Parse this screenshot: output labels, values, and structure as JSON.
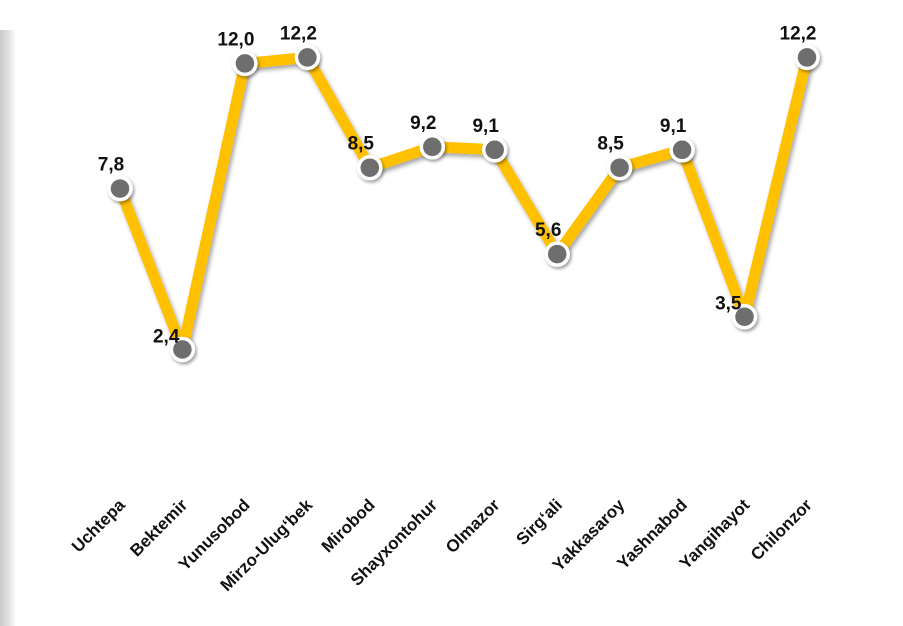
{
  "chart_data": {
    "type": "line",
    "title": "",
    "xlabel": "",
    "ylabel": "",
    "categories": [
      "Uchtepa",
      "Bektemir",
      "Yunusobod",
      "Mirzo-Ulug‘bek",
      "Mirobod",
      "Shayxontohur",
      "Olmazor",
      "Sirg‘ali",
      "Yakkasaroy",
      "Yashnabod",
      "Yangihayot",
      "Chilonzor"
    ],
    "series": [
      {
        "values": [
          7.8,
          2.4,
          12.0,
          12.2,
          8.5,
          9.2,
          9.1,
          5.6,
          8.5,
          9.1,
          3.5,
          12.2
        ],
        "labels": [
          "7,8",
          "2,4",
          "12,0",
          "12,2",
          "8,5",
          "9,2",
          "9,1",
          "5,6",
          "8,5",
          "9,1",
          "3,5",
          "12,2"
        ]
      }
    ],
    "grid": false,
    "legend": "none",
    "colors": {
      "line": "#FFC000",
      "marker": "#6E6E6E",
      "marker_stroke": "#FFFFFF",
      "text": "#111111"
    }
  }
}
